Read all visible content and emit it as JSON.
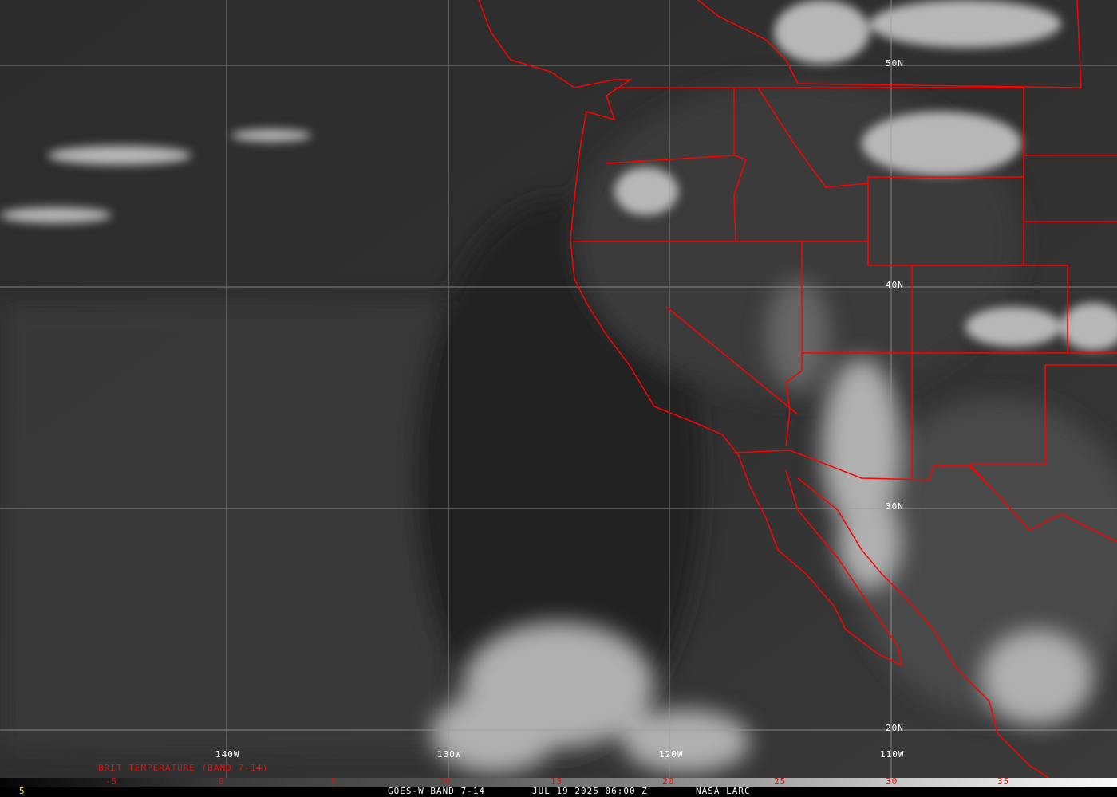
{
  "longitude_labels": [
    "140W",
    "130W",
    "120W",
    "110W"
  ],
  "latitude_labels": [
    "50N",
    "40N",
    "30N",
    "20N"
  ],
  "colorbar": {
    "title": "BRIT TEMPERATURE (BAND 7-14)",
    "ticks": [
      "-5",
      "0",
      "5",
      "10",
      "15",
      "20",
      "25",
      "30",
      "35"
    ],
    "left_value": "5"
  },
  "footer": {
    "satellite": "GOES-W BAND 7-14",
    "datetime": "JUL 19 2025 06:00 Z",
    "source": "NASA LARC"
  },
  "colors": {
    "borders": "#ff0000",
    "grid": "#9a9a9a",
    "colorbar_labels": "#e01010",
    "left_value": "#ffff00"
  }
}
